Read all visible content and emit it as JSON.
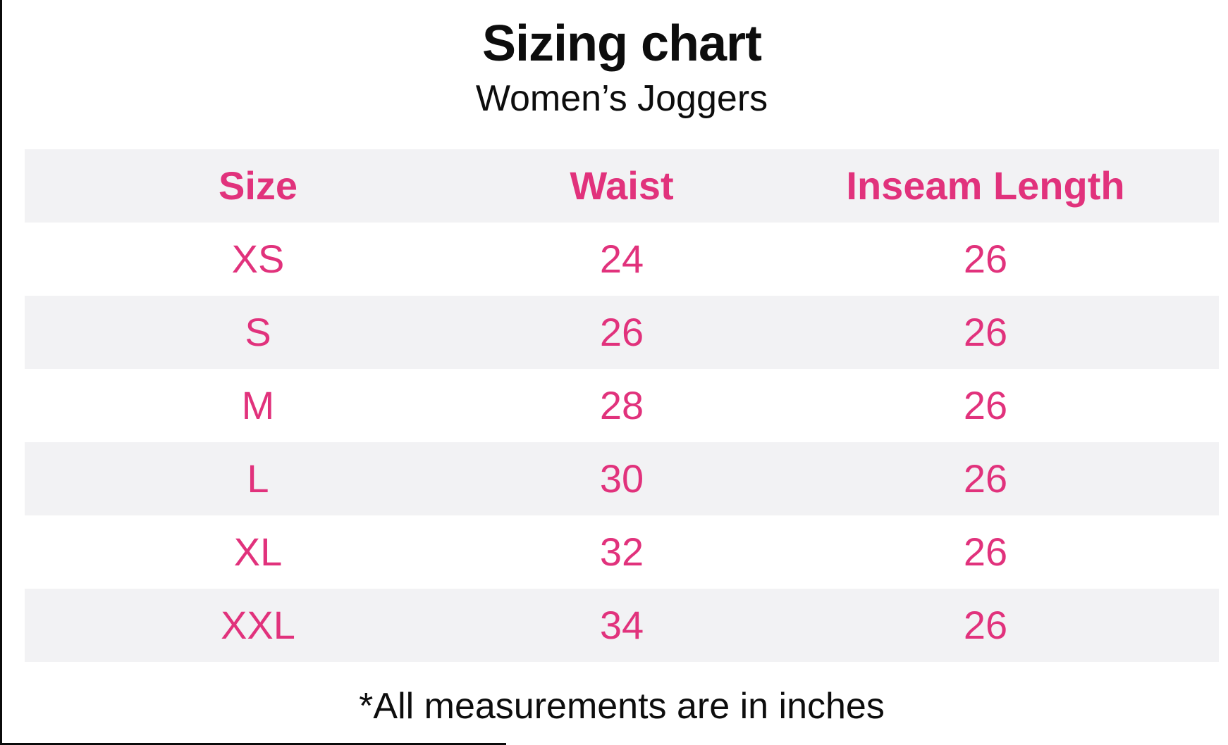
{
  "colors": {
    "accent": "#e1327c",
    "stripe": "#f2f2f4",
    "ink": "#0d0d0d"
  },
  "header": {
    "title": "Sizing chart",
    "subtitle": "Women’s Joggers"
  },
  "table": {
    "columns": [
      "Size",
      "Waist",
      "Inseam Length"
    ],
    "rows": [
      {
        "size": "XS",
        "waist": "24",
        "inseam": "26"
      },
      {
        "size": "S",
        "waist": "26",
        "inseam": "26"
      },
      {
        "size": "M",
        "waist": "28",
        "inseam": "26"
      },
      {
        "size": "L",
        "waist": "30",
        "inseam": "26"
      },
      {
        "size": "XL",
        "waist": "32",
        "inseam": "26"
      },
      {
        "size": "XXL",
        "waist": "34",
        "inseam": "26"
      }
    ]
  },
  "footnote": "*All measurements are in inches",
  "chart_data": {
    "type": "table",
    "title": "Sizing chart",
    "subtitle": "Women’s Joggers",
    "columns": [
      "Size",
      "Waist",
      "Inseam Length"
    ],
    "rows": [
      [
        "XS",
        24,
        26
      ],
      [
        "S",
        26,
        26
      ],
      [
        "M",
        28,
        26
      ],
      [
        "L",
        30,
        26
      ],
      [
        "XL",
        32,
        26
      ],
      [
        "XXL",
        34,
        26
      ]
    ],
    "footnote": "*All measurements are in inches",
    "layout": {
      "striped_rows": true,
      "header_background": "#f2f2f4",
      "text_color": "#e1327c"
    }
  }
}
